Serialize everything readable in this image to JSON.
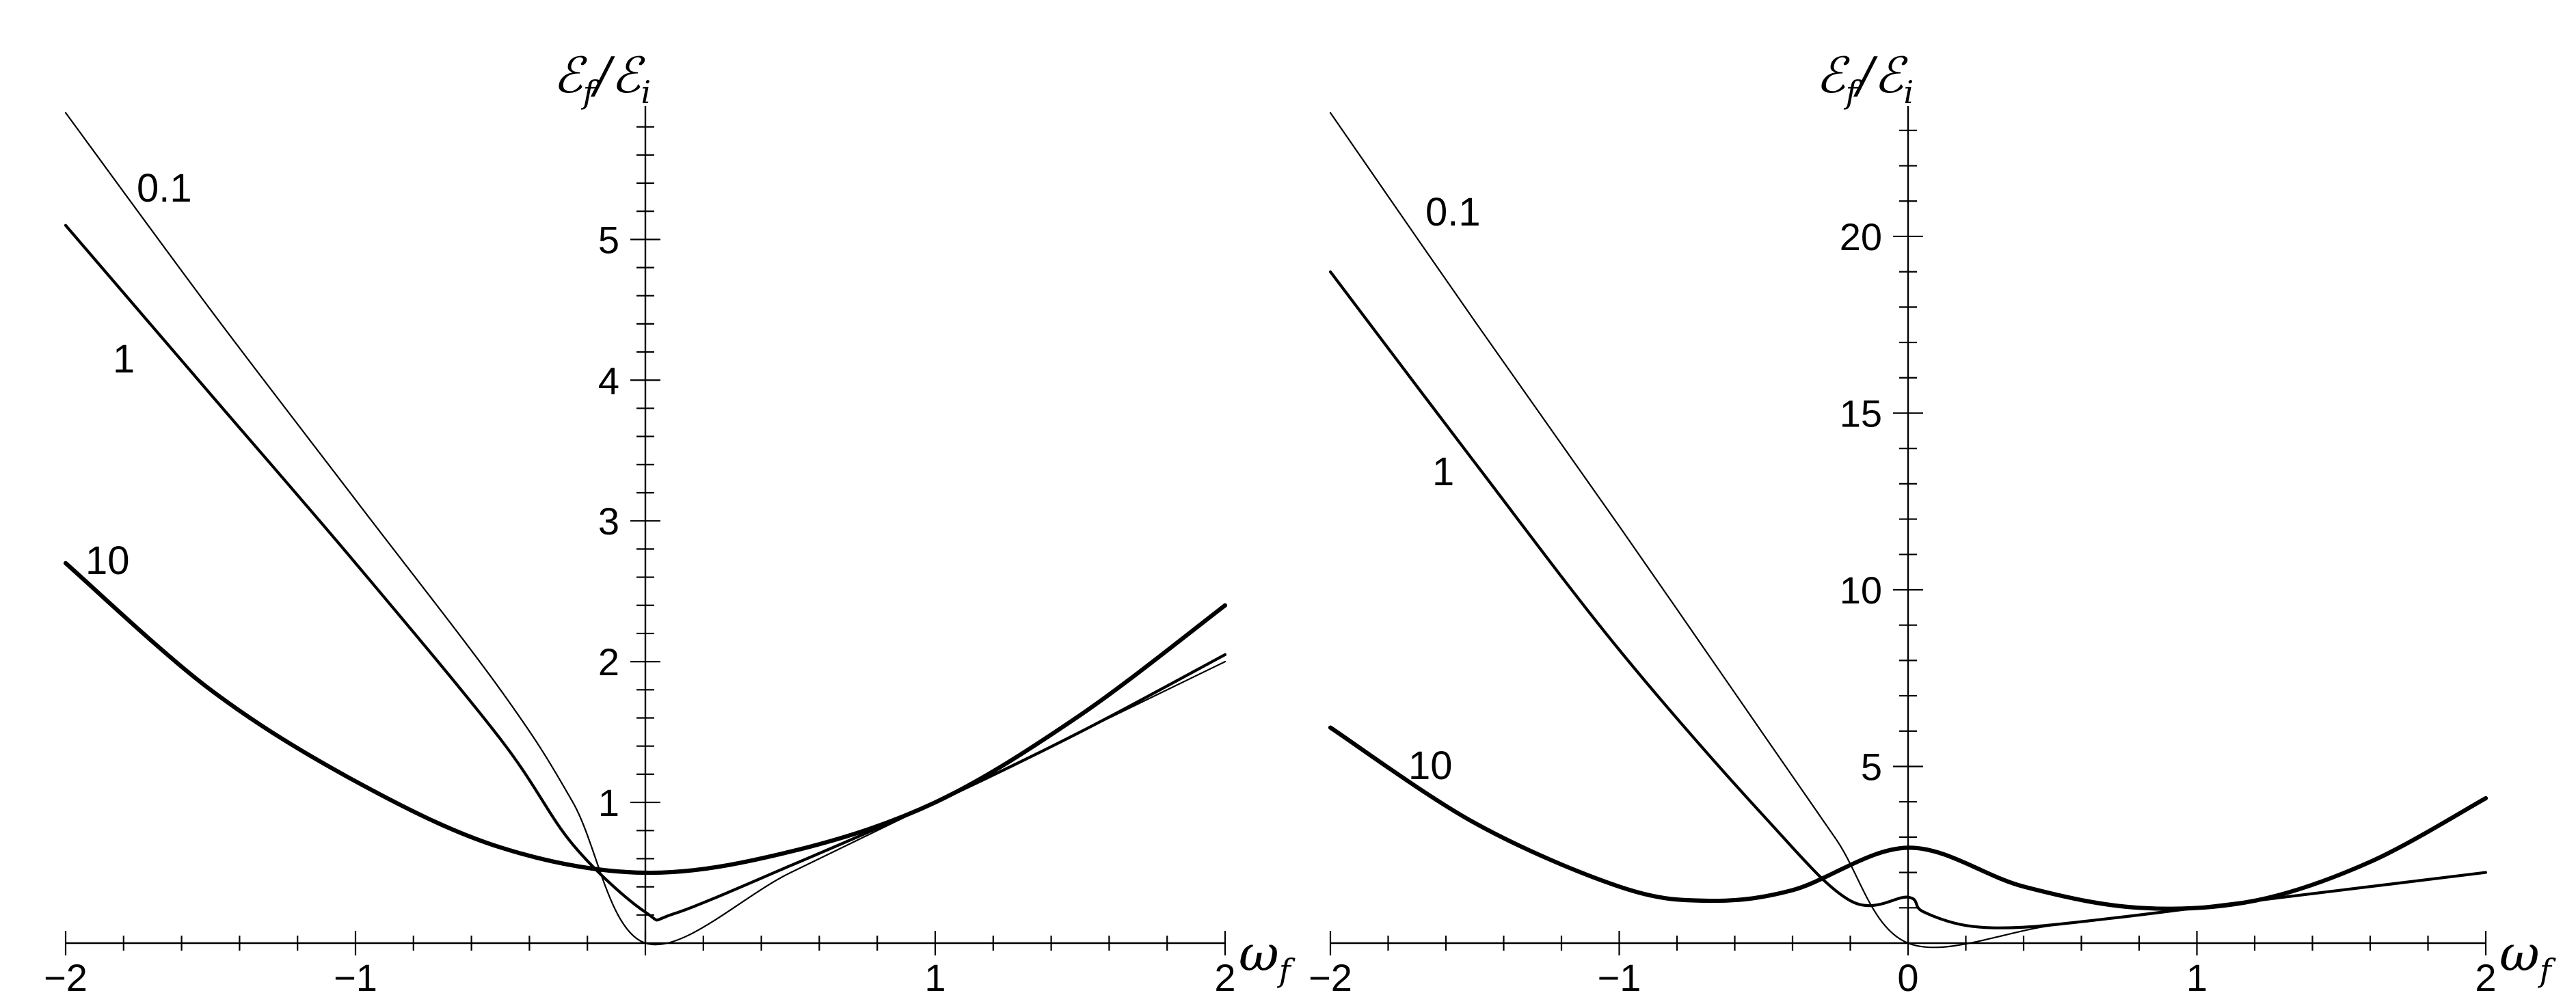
{
  "chart_data": [
    {
      "type": "line",
      "panel": "left",
      "xlabel": {
        "main": "ω",
        "sub": "f"
      },
      "ylabel": {
        "num": "ℰ",
        "num_sub": "f",
        "sep": "/",
        "den": "ℰ",
        "den_sub": "i"
      },
      "xlim": [
        -2,
        2
      ],
      "ylim": [
        0,
        5.9
      ],
      "xticks": [
        -2,
        -1,
        1,
        2
      ],
      "xtick_labels": [
        "−2",
        "−1",
        "1",
        "2"
      ],
      "yticks": [
        1,
        2,
        3,
        4,
        5
      ],
      "ytick_labels": [
        "1",
        "2",
        "3",
        "4",
        "5"
      ],
      "series": [
        {
          "name": "0.1",
          "x": [
            -2.0,
            -1.5,
            -1.0,
            -0.5,
            -0.25,
            0.0,
            0.5,
            1.0,
            1.5,
            2.0
          ],
          "y": [
            5.9,
            4.5,
            3.15,
            1.8,
            1.0,
            0.0,
            0.5,
            1.0,
            1.5,
            2.0
          ]
        },
        {
          "name": "1",
          "x": [
            -2.0,
            -1.5,
            -1.0,
            -0.5,
            -0.25,
            0.0,
            0.1,
            0.5,
            1.0,
            1.5,
            2.0
          ],
          "y": [
            5.1,
            3.9,
            2.7,
            1.45,
            0.7,
            0.22,
            0.21,
            0.55,
            1.0,
            1.5,
            2.05
          ]
        },
        {
          "name": "10",
          "x": [
            -2.0,
            -1.5,
            -1.0,
            -0.5,
            0.0,
            0.5,
            1.0,
            1.5,
            2.0
          ],
          "y": [
            2.7,
            1.8,
            1.15,
            0.68,
            0.5,
            0.65,
            1.0,
            1.62,
            2.4
          ]
        }
      ],
      "label_positions_note": "labels placed beside left ends of curves"
    },
    {
      "type": "line",
      "panel": "right",
      "xlabel": {
        "main": "ω",
        "sub": "f"
      },
      "ylabel": {
        "num": "ℰ",
        "num_sub": "f",
        "sep": "/",
        "den": "ℰ",
        "den_sub": "i"
      },
      "xlim": [
        -2,
        2
      ],
      "ylim": [
        0,
        23.5
      ],
      "xticks": [
        -2,
        -1,
        0,
        1,
        2
      ],
      "xtick_labels": [
        "−2",
        "−1",
        "0",
        "1",
        "2"
      ],
      "yticks": [
        5,
        10,
        15,
        20
      ],
      "ytick_labels": [
        "5",
        "10",
        "15",
        "20"
      ],
      "series": [
        {
          "name": "0.1",
          "x": [
            -2.0,
            -1.5,
            -1.0,
            -0.5,
            -0.25,
            0.0,
            0.5,
            1.0,
            1.5,
            2.0
          ],
          "y": [
            23.5,
            17.6,
            11.8,
            5.9,
            2.95,
            0.0,
            0.5,
            1.0,
            1.5,
            2.0
          ]
        },
        {
          "name": "1",
          "x": [
            -2.0,
            -1.5,
            -1.0,
            -0.5,
            -0.2,
            0.0,
            0.05,
            0.2,
            0.4,
            0.7,
            1.0,
            1.5,
            2.0
          ],
          "y": [
            19.0,
            13.6,
            8.3,
            3.6,
            1.2,
            1.3,
            0.9,
            0.5,
            0.45,
            0.7,
            1.0,
            1.5,
            2.0
          ]
        },
        {
          "name": "10",
          "x": [
            -2.0,
            -1.5,
            -1.0,
            -0.7,
            -0.4,
            0.0,
            0.4,
            0.8,
            1.2,
            1.6,
            2.0
          ],
          "y": [
            6.1,
            3.4,
            1.6,
            1.2,
            1.5,
            2.7,
            1.6,
            1.0,
            1.2,
            2.3,
            4.1
          ]
        }
      ]
    }
  ]
}
